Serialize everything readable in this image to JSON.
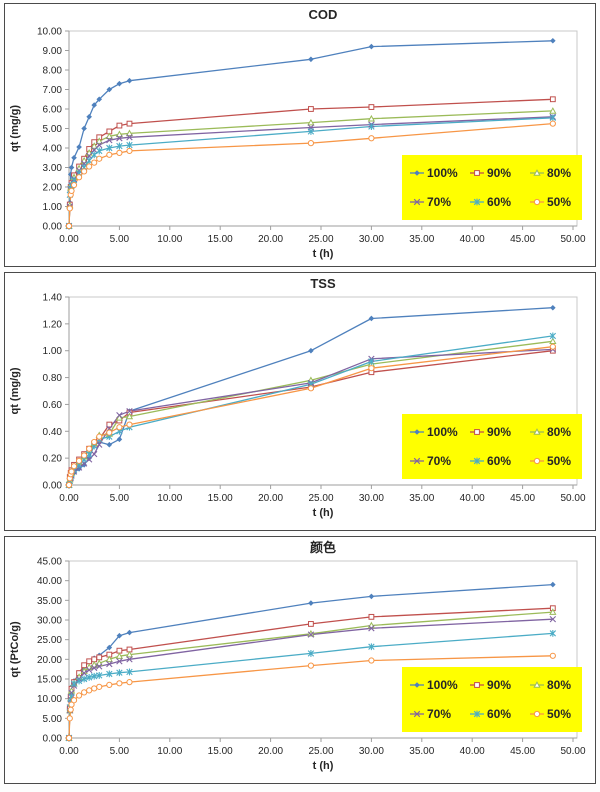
{
  "page": {
    "background": "#fdfdfd",
    "panel_border": "#4a4a4a"
  },
  "chart_data": [
    {
      "type": "line",
      "title": "COD",
      "xlabel": "t (h)",
      "ylabel": "qt (mg/g)",
      "xlim": [
        0,
        50
      ],
      "x_tick_step": 5,
      "ylim": [
        0,
        10
      ],
      "y_tick_step": 1,
      "tick_decimals": 2,
      "grid": false,
      "legend": {
        "position": "inside-bottom-right",
        "background": "#FFFF00",
        "columns": 3
      },
      "x": [
        0,
        0.08,
        0.17,
        0.25,
        0.5,
        1,
        1.5,
        2,
        2.5,
        3,
        4,
        5,
        6,
        24,
        30,
        48
      ],
      "series": [
        {
          "name": "100%",
          "color": "#4F81BD",
          "marker": "diamond",
          "values": [
            0,
            1.2,
            2.65,
            3.0,
            3.5,
            4.05,
            5.0,
            5.6,
            6.2,
            6.5,
            7.0,
            7.3,
            7.45,
            8.55,
            9.2,
            9.5
          ]
        },
        {
          "name": "90%",
          "color": "#C0504D",
          "marker": "square",
          "values": [
            0,
            1.1,
            2.0,
            2.2,
            2.6,
            3.05,
            3.45,
            3.95,
            4.3,
            4.55,
            4.85,
            5.15,
            5.25,
            6.0,
            6.1,
            6.5
          ]
        },
        {
          "name": "80%",
          "color": "#9BBB59",
          "marker": "triangle",
          "values": [
            0,
            1.05,
            1.95,
            2.15,
            2.5,
            2.95,
            3.35,
            3.75,
            4.1,
            4.35,
            4.6,
            4.7,
            4.75,
            5.3,
            5.5,
            5.9
          ]
        },
        {
          "name": "70%",
          "color": "#8064A2",
          "marker": "x",
          "values": [
            0,
            1.0,
            1.9,
            2.1,
            2.4,
            2.85,
            3.2,
            3.6,
            3.9,
            4.15,
            4.4,
            4.5,
            4.55,
            5.05,
            5.2,
            5.6
          ]
        },
        {
          "name": "60%",
          "color": "#4BACC6",
          "marker": "star",
          "values": [
            0,
            1.6,
            1.9,
            2.05,
            2.35,
            2.7,
            3.0,
            3.35,
            3.65,
            3.85,
            4.0,
            4.1,
            4.15,
            4.85,
            5.1,
            5.55
          ]
        },
        {
          "name": "50%",
          "color": "#F79646",
          "marker": "circle",
          "values": [
            0,
            0.9,
            1.6,
            1.8,
            2.1,
            2.5,
            2.8,
            3.05,
            3.25,
            3.45,
            3.65,
            3.75,
            3.85,
            4.25,
            4.5,
            5.25
          ]
        }
      ]
    },
    {
      "type": "line",
      "title": "TSS",
      "xlabel": "t (h)",
      "ylabel": "qt (mg/g)",
      "xlim": [
        0,
        50
      ],
      "x_tick_step": 5,
      "ylim": [
        0,
        1.4
      ],
      "y_tick_step": 0.2,
      "tick_decimals": 2,
      "grid": false,
      "legend": {
        "position": "inside-bottom-right",
        "background": "#FFFF00",
        "columns": 3
      },
      "x": [
        0,
        0.08,
        0.17,
        0.25,
        0.5,
        1,
        1.5,
        2,
        2.5,
        3,
        4,
        5,
        6,
        24,
        30,
        48
      ],
      "series": [
        {
          "name": "100%",
          "color": "#4F81BD",
          "marker": "diamond",
          "values": [
            0,
            0.02,
            0.05,
            0.07,
            0.09,
            0.12,
            0.15,
            0.2,
            0.3,
            0.32,
            0.3,
            0.34,
            0.55,
            1.0,
            1.24,
            1.32
          ]
        },
        {
          "name": "90%",
          "color": "#C0504D",
          "marker": "square",
          "values": [
            0,
            0.06,
            0.09,
            0.11,
            0.15,
            0.19,
            0.23,
            0.27,
            0.31,
            0.34,
            0.45,
            0.48,
            0.54,
            0.73,
            0.84,
            1.0
          ]
        },
        {
          "name": "80%",
          "color": "#9BBB59",
          "marker": "triangle",
          "values": [
            0,
            0.04,
            0.07,
            0.09,
            0.13,
            0.17,
            0.21,
            0.26,
            0.31,
            0.37,
            0.38,
            0.5,
            0.51,
            0.78,
            0.9,
            1.07
          ]
        },
        {
          "name": "70%",
          "color": "#8064A2",
          "marker": "x",
          "values": [
            0,
            0.03,
            0.05,
            0.07,
            0.1,
            0.13,
            0.16,
            0.19,
            0.23,
            0.3,
            0.42,
            0.52,
            0.55,
            0.76,
            0.94,
            1.01
          ]
        },
        {
          "name": "60%",
          "color": "#4BACC6",
          "marker": "star",
          "values": [
            0,
            0.03,
            0.06,
            0.08,
            0.11,
            0.15,
            0.19,
            0.23,
            0.29,
            0.34,
            0.36,
            0.4,
            0.43,
            0.75,
            0.92,
            1.11
          ]
        },
        {
          "name": "50%",
          "color": "#F79646",
          "marker": "circle",
          "values": [
            0,
            0.05,
            0.08,
            0.1,
            0.14,
            0.18,
            0.22,
            0.27,
            0.32,
            0.36,
            0.39,
            0.43,
            0.45,
            0.72,
            0.87,
            1.03
          ]
        }
      ]
    },
    {
      "type": "line",
      "title": "颜色",
      "xlabel": "t (h)",
      "ylabel": "qt (PtCo/g)",
      "xlim": [
        0,
        50
      ],
      "x_tick_step": 5,
      "ylim": [
        0,
        45
      ],
      "y_tick_step": 5,
      "tick_decimals": 2,
      "grid": false,
      "legend": {
        "position": "inside-bottom-right",
        "background": "#FFFF00",
        "columns": 3
      },
      "x": [
        0,
        0.08,
        0.17,
        0.25,
        0.5,
        1,
        1.5,
        2,
        2.5,
        3,
        4,
        5,
        6,
        24,
        30,
        48
      ],
      "series": [
        {
          "name": "100%",
          "color": "#4F81BD",
          "marker": "diamond",
          "values": [
            0,
            7.8,
            11.0,
            13.0,
            14.5,
            16.0,
            18.0,
            19.5,
            20.3,
            21.0,
            23.0,
            26.0,
            26.8,
            34.3,
            36.0,
            39.0
          ]
        },
        {
          "name": "90%",
          "color": "#C0504D",
          "marker": "square",
          "values": [
            0,
            7.5,
            10.5,
            12.5,
            14.2,
            16.5,
            18.5,
            19.5,
            20.0,
            20.5,
            21.2,
            22.2,
            22.5,
            29.0,
            30.8,
            33.0
          ]
        },
        {
          "name": "80%",
          "color": "#9BBB59",
          "marker": "triangle",
          "values": [
            0,
            7.0,
            10.0,
            12.0,
            13.8,
            15.5,
            17.0,
            18.0,
            18.6,
            19.0,
            20.0,
            20.8,
            21.2,
            26.5,
            28.6,
            32.0
          ]
        },
        {
          "name": "70%",
          "color": "#8064A2",
          "marker": "x",
          "values": [
            0,
            7.0,
            9.8,
            11.5,
            13.3,
            15.0,
            16.5,
            17.3,
            17.8,
            18.2,
            18.8,
            19.5,
            20.0,
            26.3,
            27.9,
            30.2
          ]
        },
        {
          "name": "60%",
          "color": "#4BACC6",
          "marker": "star",
          "values": [
            0,
            7.8,
            9.0,
            10.5,
            13.8,
            14.5,
            15.0,
            15.4,
            15.7,
            15.9,
            16.3,
            16.6,
            16.8,
            21.5,
            23.2,
            26.6
          ]
        },
        {
          "name": "50%",
          "color": "#F79646",
          "marker": "circle",
          "values": [
            0,
            5.0,
            7.2,
            8.5,
            9.6,
            10.8,
            11.6,
            12.1,
            12.6,
            13.0,
            13.5,
            13.9,
            14.2,
            18.4,
            19.7,
            20.9
          ]
        }
      ]
    }
  ]
}
